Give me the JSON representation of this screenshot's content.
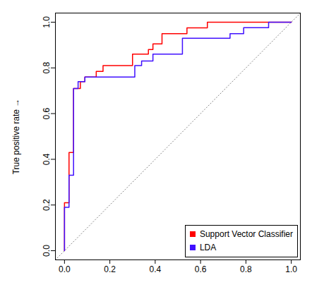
{
  "chart_data": {
    "type": "line",
    "y_label": "True positive rate",
    "xlim": [
      -0.04,
      1.04
    ],
    "ylim": [
      -0.04,
      1.04
    ],
    "xticks": [
      {
        "value": 0,
        "label": "0.0"
      },
      0.2,
      0.4,
      0.6,
      0.8,
      {
        "value": 1,
        "label": "1.0"
      }
    ],
    "yticks": [
      {
        "value": 0,
        "label": "0.0"
      },
      0.2,
      0.4,
      0.6,
      0.8,
      {
        "value": 1,
        "label": "1.0"
      }
    ],
    "grid": false,
    "legend": "bottom-right",
    "series": [
      {
        "name": "Support Vector Classifier",
        "color": "#ff0000",
        "line_style": "step",
        "x": [
          0,
          0,
          0.02,
          0.04,
          0.07,
          0.09,
          0.14,
          0.17,
          0.3,
          0.37,
          0.39,
          0.43,
          0.54,
          0.63,
          1
        ],
        "values": [
          0,
          0.21,
          0.43,
          0.71,
          0.74,
          0.76,
          0.785,
          0.81,
          0.86,
          0.88,
          0.905,
          0.95,
          0.975,
          1,
          1
        ]
      },
      {
        "name": "LDA",
        "color": "#4010ff",
        "line_style": "step",
        "x": [
          0,
          0,
          0.02,
          0.04,
          0.06,
          0.09,
          0.31,
          0.34,
          0.39,
          0.52,
          0.73,
          0.79,
          0.9,
          1
        ],
        "values": [
          0,
          0.19,
          0.33,
          0.71,
          0.74,
          0.76,
          0.81,
          0.83,
          0.86,
          0.93,
          0.95,
          0.976,
          1,
          1
        ]
      }
    ]
  }
}
